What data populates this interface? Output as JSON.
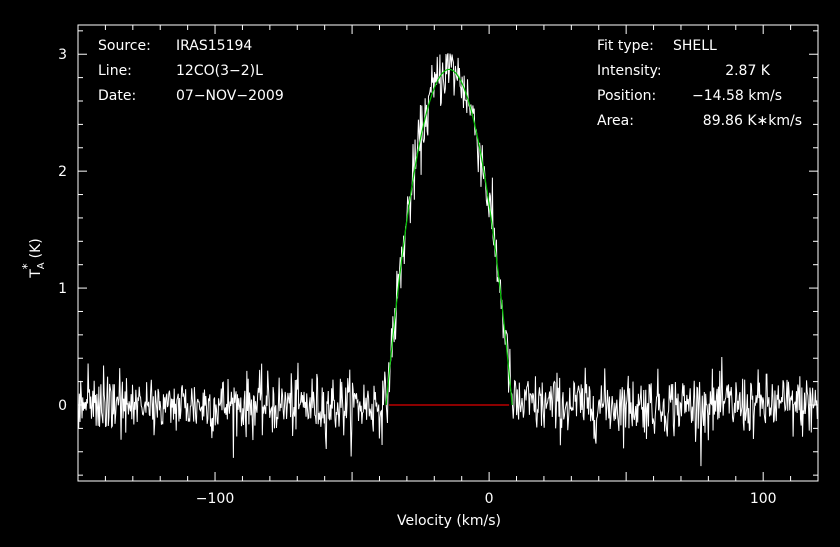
{
  "chart_data": {
    "type": "line",
    "title": "",
    "xlabel": "Velocity (km/s)",
    "ylabel": "T_A^* (K)",
    "ylabel_parts": {
      "main": "T",
      "sub": "A",
      "sup": "*",
      "unit": "(K)"
    },
    "xlim": [
      -150,
      120
    ],
    "ylim": [
      -0.65,
      3.25
    ],
    "xticks": [
      -100,
      0,
      100
    ],
    "xtick_labels": [
      "−100",
      "0",
      "100"
    ],
    "yticks": [
      0,
      1,
      2,
      3
    ],
    "ytick_labels": [
      "0",
      "1",
      "2",
      "3"
    ],
    "grid": false,
    "legend": "none",
    "info_left": [
      {
        "key": "Source:",
        "value": "IRAS15194"
      },
      {
        "key": "Line:",
        "value": "12CO(3−2)L"
      },
      {
        "key": "Date:",
        "value": "07−NOV−2009"
      }
    ],
    "info_right": [
      {
        "key": "Fit type:",
        "value": "SHELL"
      },
      {
        "key": "Intensity:",
        "value": "2.87 K"
      },
      {
        "key": "Position:",
        "value": "−14.58 km/s"
      },
      {
        "key": "Area:",
        "value": "89.86 K∗km/s"
      }
    ],
    "fit": {
      "type": "SHELL",
      "intensity": 2.87,
      "position": -14.58,
      "half_width": 23,
      "horn_ratio": 0.0
    },
    "baseline_range": [
      -36.5,
      7.3
    ],
    "spectrum": {
      "noise_rms": 0.13,
      "samples": 1100
    },
    "colors": {
      "background": "#000000",
      "axes": "#ffffff",
      "spectrum": "#ffffff",
      "fit": "#00c000",
      "baseline": "#e00000"
    }
  }
}
